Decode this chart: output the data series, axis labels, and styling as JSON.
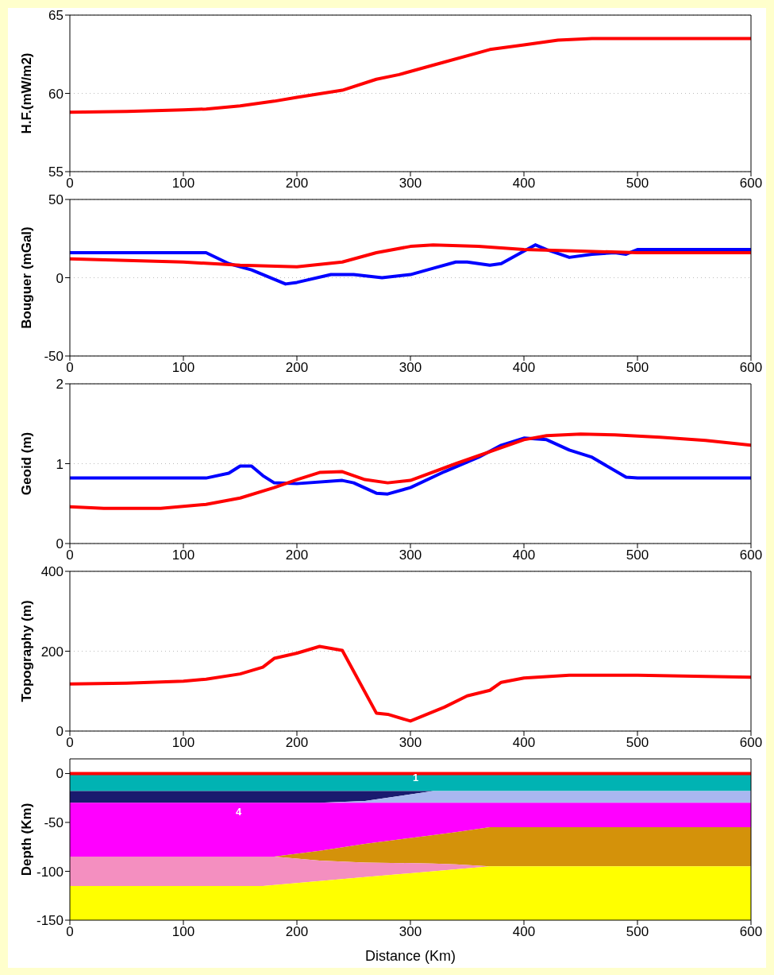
{
  "chart_data": [
    {
      "type": "line",
      "ylabel": "H.F.(mW/m2)",
      "xlim": [
        0,
        600
      ],
      "xticks": [
        0,
        100,
        200,
        300,
        400,
        500,
        600
      ],
      "ylim": [
        55,
        65
      ],
      "yticks": [
        55,
        60,
        65
      ],
      "grid": "y",
      "line_style": "solid",
      "series": [
        {
          "color": "#ff0000",
          "x": [
            0,
            50,
            100,
            120,
            150,
            180,
            200,
            240,
            270,
            290,
            320,
            370,
            400,
            430,
            460,
            500,
            600
          ],
          "values": [
            58.8,
            58.85,
            58.95,
            59.0,
            59.2,
            59.5,
            59.75,
            60.2,
            60.9,
            61.2,
            61.8,
            62.8,
            63.1,
            63.4,
            63.5,
            63.5,
            63.5
          ]
        }
      ]
    },
    {
      "type": "line",
      "ylabel": "Bouguer (mGal)",
      "xlim": [
        0,
        600
      ],
      "xticks": [
        0,
        100,
        200,
        300,
        400,
        500,
        600
      ],
      "ylim": [
        -50,
        50
      ],
      "yticks": [
        -50,
        0,
        50
      ],
      "grid": "y",
      "line_style": "solid",
      "series": [
        {
          "color": "#0000ff",
          "x": [
            0,
            120,
            140,
            160,
            190,
            200,
            230,
            250,
            275,
            300,
            320,
            340,
            350,
            370,
            380,
            400,
            410,
            420,
            440,
            460,
            480,
            490,
            500,
            600
          ],
          "values": [
            16,
            16,
            9,
            5,
            -4,
            -3,
            2,
            2,
            0,
            2,
            6,
            10,
            10,
            8,
            9,
            17,
            21,
            18,
            13,
            15,
            16,
            15,
            18,
            18
          ]
        },
        {
          "color": "#ff0000",
          "x": [
            0,
            100,
            150,
            200,
            240,
            270,
            300,
            320,
            360,
            400,
            450,
            500,
            600
          ],
          "values": [
            12,
            10,
            8,
            7,
            10,
            16,
            20,
            21,
            20,
            18,
            17,
            16,
            16
          ]
        }
      ]
    },
    {
      "type": "line",
      "ylabel": "Geoid (m)",
      "xlim": [
        0,
        600
      ],
      "xticks": [
        0,
        100,
        200,
        300,
        400,
        500,
        600
      ],
      "ylim": [
        0,
        2
      ],
      "yticks": [
        0,
        1,
        2
      ],
      "grid": "y",
      "line_style": "solid",
      "series": [
        {
          "color": "#0000ff",
          "x": [
            0,
            120,
            140,
            150,
            160,
            170,
            180,
            200,
            240,
            250,
            270,
            280,
            300,
            330,
            360,
            380,
            400,
            420,
            440,
            460,
            490,
            500,
            600
          ],
          "values": [
            0.82,
            0.82,
            0.88,
            0.97,
            0.97,
            0.85,
            0.76,
            0.75,
            0.79,
            0.76,
            0.63,
            0.62,
            0.7,
            0.9,
            1.08,
            1.23,
            1.32,
            1.3,
            1.17,
            1.08,
            0.83,
            0.82,
            0.82
          ]
        },
        {
          "color": "#ff0000",
          "x": [
            0,
            30,
            80,
            120,
            150,
            180,
            200,
            220,
            240,
            260,
            280,
            300,
            340,
            380,
            400,
            420,
            450,
            480,
            520,
            560,
            600
          ],
          "values": [
            0.46,
            0.44,
            0.44,
            0.49,
            0.57,
            0.7,
            0.8,
            0.89,
            0.9,
            0.8,
            0.76,
            0.79,
            1.0,
            1.2,
            1.3,
            1.35,
            1.37,
            1.36,
            1.33,
            1.29,
            1.23
          ]
        }
      ]
    },
    {
      "type": "line",
      "ylabel": "Topography (m)",
      "xlim": [
        0,
        600
      ],
      "xticks": [
        0,
        100,
        200,
        300,
        400,
        500,
        600
      ],
      "ylim": [
        0,
        400
      ],
      "yticks": [
        0,
        200,
        400
      ],
      "grid": "y",
      "line_style": "solid",
      "series": [
        {
          "color": "#ff0000",
          "x": [
            0,
            50,
            100,
            120,
            150,
            170,
            180,
            200,
            220,
            240,
            270,
            280,
            300,
            330,
            350,
            370,
            380,
            400,
            440,
            500,
            560,
            600
          ],
          "values": [
            118,
            120,
            125,
            130,
            143,
            160,
            182,
            195,
            212,
            202,
            45,
            42,
            25,
            60,
            88,
            102,
            122,
            133,
            140,
            140,
            137,
            135
          ]
        }
      ]
    },
    {
      "type": "area",
      "stacked": true,
      "xlabel": "Distance (Km)",
      "ylabel": "Depth (Km)",
      "xlim": [
        0,
        600
      ],
      "xticks": [
        0,
        100,
        200,
        300,
        400,
        500,
        600
      ],
      "ylim": [
        -150,
        15
      ],
      "yticks": [
        0,
        -50,
        -100,
        -150
      ],
      "x": [
        0,
        170,
        180,
        220,
        260,
        320,
        340,
        370,
        600
      ],
      "series": [
        {
          "color": "#00b3b3",
          "values": [
            -18,
            -18,
            -18,
            -18,
            -18,
            -18,
            -18,
            -18,
            -18
          ]
        },
        {
          "color": "#1a1a6e",
          "values": [
            -12,
            -12,
            -12,
            -12,
            -10,
            0,
            null,
            null,
            null
          ]
        },
        {
          "color": "#a9b7f0",
          "values": [
            null,
            null,
            null,
            0,
            -2,
            -12,
            -12,
            -12,
            -12
          ]
        },
        {
          "color": "#ff00ff",
          "values": [
            -55,
            -55,
            -55,
            -49,
            -42,
            -33,
            -30,
            -25,
            -25
          ]
        },
        {
          "color": "#d4920a",
          "values": [
            null,
            null,
            0,
            -10,
            -19,
            -29,
            -33,
            -40,
            -40
          ]
        },
        {
          "color": "#f48fc0",
          "values": [
            -30,
            -30,
            -29,
            -21,
            -15,
            -8,
            -5,
            0,
            null
          ]
        },
        {
          "color": "#ffff00",
          "values": [
            -35,
            -35,
            -36,
            -40,
            -44,
            -50,
            -52,
            -55,
            -55
          ]
        },
        {
          "type": "line",
          "color": "#ff0000",
          "values": [
            0,
            0,
            0,
            0,
            0,
            0,
            0,
            0,
            0
          ]
        }
      ],
      "annotations": [
        "1",
        "4"
      ]
    }
  ]
}
